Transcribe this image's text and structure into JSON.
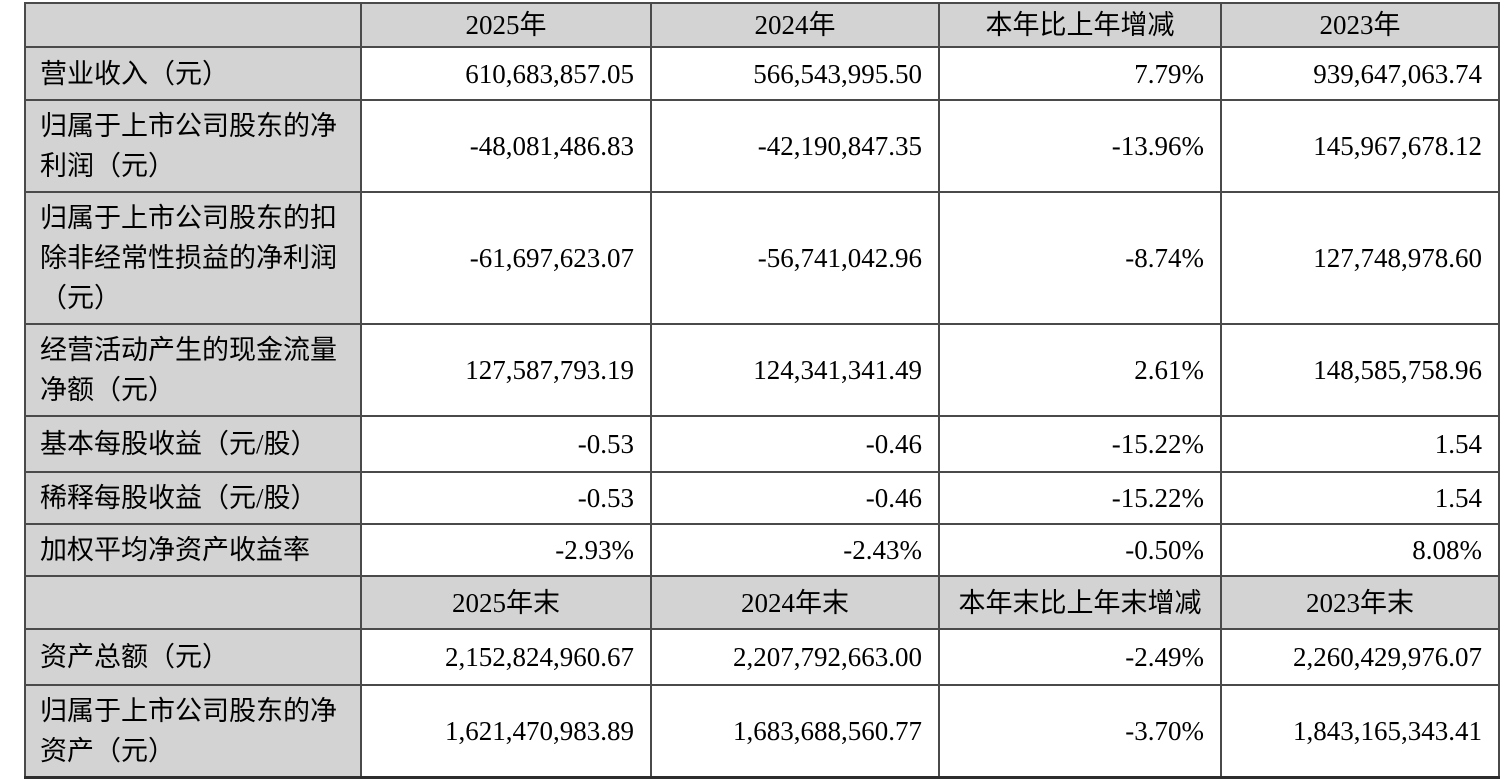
{
  "table": {
    "header_annual": {
      "blank": "",
      "col_2025": "2025年",
      "col_2024": "2024年",
      "col_change": "本年比上年增减",
      "col_2023": "2023年"
    },
    "annual_rows": [
      {
        "label": "营业收入（元）",
        "v2025": "610,683,857.05",
        "v2024": "566,543,995.50",
        "change": "7.79%",
        "v2023": "939,647,063.74"
      },
      {
        "label": "归属于上市公司股东的净利润（元）",
        "v2025": "-48,081,486.83",
        "v2024": "-42,190,847.35",
        "change": "-13.96%",
        "v2023": "145,967,678.12"
      },
      {
        "label": "归属于上市公司股东的扣除非经常性损益的净利润（元）",
        "v2025": "-61,697,623.07",
        "v2024": "-56,741,042.96",
        "change": "-8.74%",
        "v2023": "127,748,978.60"
      },
      {
        "label": "经营活动产生的现金流量净额（元）",
        "v2025": "127,587,793.19",
        "v2024": "124,341,341.49",
        "change": "2.61%",
        "v2023": "148,585,758.96"
      },
      {
        "label": "基本每股收益（元/股）",
        "v2025": "-0.53",
        "v2024": "-0.46",
        "change": "-15.22%",
        "v2023": "1.54"
      },
      {
        "label": "稀释每股收益（元/股）",
        "v2025": "-0.53",
        "v2024": "-0.46",
        "change": "-15.22%",
        "v2023": "1.54"
      },
      {
        "label": "加权平均净资产收益率",
        "v2025": "-2.93%",
        "v2024": "-2.43%",
        "change": "-0.50%",
        "v2023": "8.08%"
      }
    ],
    "header_eoy": {
      "blank": "",
      "col_2025": "2025年末",
      "col_2024": "2024年末",
      "col_change": "本年末比上年末增减",
      "col_2023": "2023年末"
    },
    "eoy_rows": [
      {
        "label": "资产总额（元）",
        "v2025": "2,152,824,960.67",
        "v2024": "2,207,792,663.00",
        "change": "-2.49%",
        "v2023": "2,260,429,976.07"
      },
      {
        "label": "归属于上市公司股东的净资产（元）",
        "v2025": "1,621,470,983.89",
        "v2024": "1,683,688,560.77",
        "change": "-3.70%",
        "v2023": "1,843,165,343.41"
      }
    ]
  },
  "colors": {
    "header_bg": "#d3d3d3",
    "label_bg": "#d3d3d3",
    "data_bg": "#ffffff",
    "border": "#4a4a4a",
    "text": "#000000"
  }
}
